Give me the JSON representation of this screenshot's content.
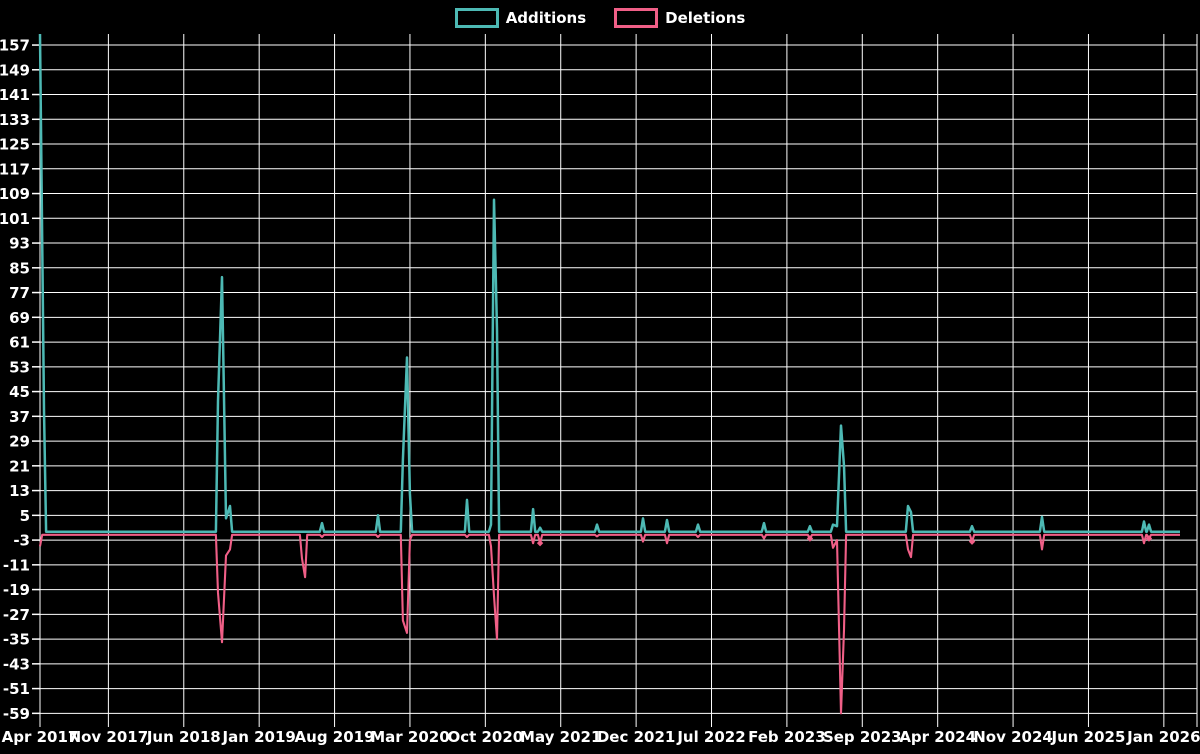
{
  "legend": {
    "additions_label": "Additions",
    "deletions_label": "Deletions"
  },
  "colors": {
    "additions": "#4db9b4",
    "deletions": "#f05f87",
    "grid": "#ffffff",
    "background": "#000000",
    "text": "#ffffff"
  },
  "chart_data": {
    "type": "line",
    "title": "",
    "xlabel": "",
    "ylabel": "",
    "x_axis": {
      "tick_labels": [
        "Apr 2017",
        "Nov 2017",
        "Jun 2018",
        "Jan 2019",
        "Aug 2019",
        "Mar 2020",
        "Oct 2020",
        "May 2021",
        "Dec 2021",
        "Jul 2022",
        "Feb 2023",
        "Sep 2023",
        "Apr 2024",
        "Nov 2024",
        "Jun 2025",
        "Jan 2026"
      ],
      "months_per_tick": 7,
      "domain_months": [
        0,
        106.5
      ]
    },
    "y_axis": {
      "min": -59,
      "max": 157,
      "step": 8,
      "tick_labels": [
        157,
        149,
        141,
        133,
        125,
        117,
        109,
        101,
        93,
        85,
        77,
        69,
        61,
        53,
        45,
        37,
        29,
        21,
        13,
        5,
        -3,
        -11,
        -19,
        -27,
        -35,
        -43,
        -51,
        -59
      ]
    },
    "grid": true,
    "legend_position": "top-center",
    "series": [
      {
        "name": "Additions",
        "color_key": "additions",
        "baseline": -0.3,
        "spikes": [
          [
            0.65,
            160.6
          ],
          [
            1.02,
            39
          ],
          [
            17.18,
            42
          ],
          [
            17.55,
            82
          ],
          [
            17.92,
            4
          ],
          [
            18.29,
            8
          ],
          [
            26.83,
            2.5
          ],
          [
            32.03,
            5
          ],
          [
            34.35,
            23
          ],
          [
            34.73,
            56
          ],
          [
            35.0,
            12
          ],
          [
            40.3,
            10
          ],
          [
            42.53,
            2
          ],
          [
            42.8,
            107
          ],
          [
            43.08,
            65
          ],
          [
            46.43,
            7
          ],
          [
            47.08,
            1
          ],
          [
            52.37,
            2
          ],
          [
            56.64,
            4
          ],
          [
            58.87,
            3.5
          ],
          [
            61.75,
            2
          ],
          [
            67.87,
            2.5
          ],
          [
            72.14,
            1.5
          ],
          [
            74.28,
            2
          ],
          [
            74.65,
            1.5
          ],
          [
            75.02,
            34
          ],
          [
            75.3,
            21
          ],
          [
            81.24,
            8
          ],
          [
            81.52,
            6
          ],
          [
            87.19,
            1.5
          ],
          [
            93.69,
            4.5
          ],
          [
            103.16,
            3
          ],
          [
            103.62,
            2
          ]
        ]
      },
      {
        "name": "Deletions",
        "color_key": "deletions",
        "baseline": -1.3,
        "spikes": [
          [
            0.65,
            -5
          ],
          [
            17.18,
            -20
          ],
          [
            17.55,
            -36
          ],
          [
            17.92,
            -8
          ],
          [
            18.29,
            -6
          ],
          [
            24.98,
            -9
          ],
          [
            25.26,
            -15
          ],
          [
            26.83,
            -2
          ],
          [
            32.03,
            -2
          ],
          [
            34.35,
            -29
          ],
          [
            34.73,
            -33
          ],
          [
            35.0,
            -3
          ],
          [
            40.3,
            -2
          ],
          [
            42.53,
            -5
          ],
          [
            42.8,
            -21
          ],
          [
            43.08,
            -35
          ],
          [
            46.43,
            -4
          ],
          [
            47.08,
            -4
          ],
          [
            52.37,
            -1.8
          ],
          [
            56.64,
            -3.5
          ],
          [
            58.87,
            -4
          ],
          [
            61.75,
            -2
          ],
          [
            67.87,
            -2.5
          ],
          [
            72.14,
            -2.5
          ],
          [
            74.28,
            -5.5
          ],
          [
            74.65,
            -3
          ],
          [
            75.02,
            -59
          ],
          [
            75.3,
            -32
          ],
          [
            81.24,
            -6
          ],
          [
            81.52,
            -8.5
          ],
          [
            87.19,
            -3.5
          ],
          [
            93.69,
            -6
          ],
          [
            103.16,
            -4
          ],
          [
            103.62,
            -2.5
          ]
        ],
        "markers": [
          [
            47.08,
            -4
          ],
          [
            72.14,
            -2.5
          ],
          [
            87.19,
            -3.5
          ],
          [
            103.62,
            -2.5
          ]
        ]
      }
    ]
  }
}
